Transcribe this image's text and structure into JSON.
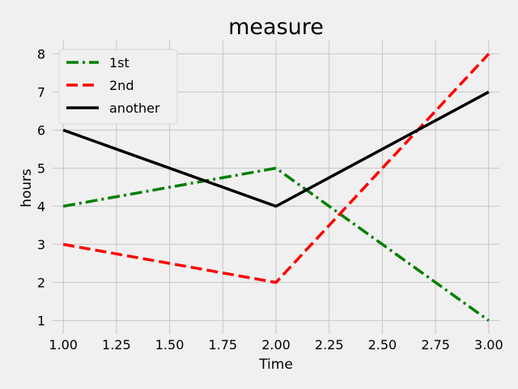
{
  "chart_data": {
    "type": "line",
    "title": "measure",
    "xlabel": "Time",
    "ylabel": "hours",
    "xlim": [
      0.95,
      3.05
    ],
    "ylim": [
      0.65,
      8.35
    ],
    "x_ticks": [
      1.0,
      1.25,
      1.5,
      1.75,
      2.0,
      2.25,
      2.5,
      2.75,
      3.0
    ],
    "x_tick_labels": [
      "1.00",
      "1.25",
      "1.50",
      "1.75",
      "2.00",
      "2.25",
      "2.50",
      "2.75",
      "3.00"
    ],
    "y_ticks": [
      1,
      2,
      3,
      4,
      5,
      6,
      7,
      8
    ],
    "y_tick_labels": [
      "1",
      "2",
      "3",
      "4",
      "5",
      "6",
      "7",
      "8"
    ],
    "grid": true,
    "legend_position": "top-left",
    "x": [
      1,
      2,
      3
    ],
    "series": [
      {
        "name": "1st",
        "values": [
          4,
          5,
          1
        ],
        "color": "#008000",
        "line_style": "dashdot"
      },
      {
        "name": "2nd",
        "values": [
          3,
          2,
          8
        ],
        "color": "#ff0000",
        "line_style": "dashed"
      },
      {
        "name": "another",
        "values": [
          6,
          4,
          7
        ],
        "color": "#000000",
        "line_style": "solid"
      }
    ]
  }
}
